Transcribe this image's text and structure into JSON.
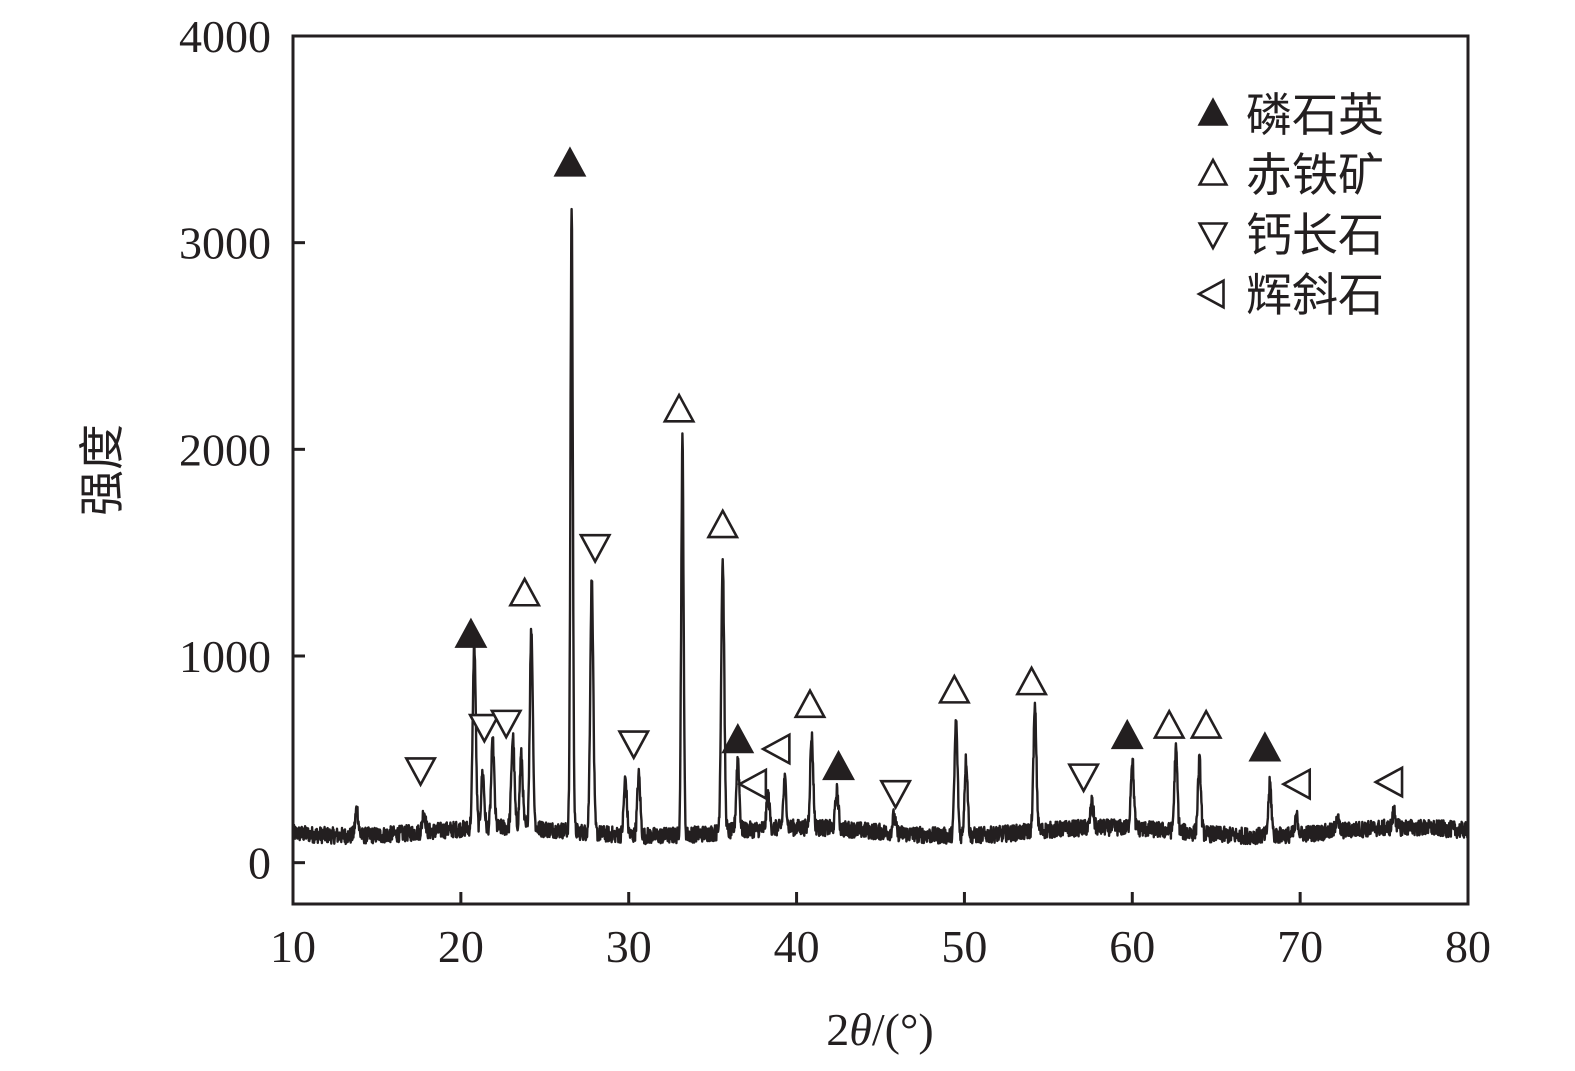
{
  "chart_data": {
    "type": "line",
    "title": "",
    "xlabel": "2θ/(°)",
    "xlabel_parts": {
      "prefix": "2",
      "symbol": "θ",
      "suffix": "/(°)"
    },
    "ylabel": "强度",
    "xlim": [
      10,
      80
    ],
    "ylim": [
      -200,
      4000
    ],
    "xticks": [
      10,
      20,
      30,
      40,
      50,
      60,
      70,
      80
    ],
    "yticks": [
      0,
      1000,
      2000,
      3000,
      4000
    ],
    "grid": false,
    "legend_position": "top-right",
    "line_color": "#231f20",
    "baseline": 150,
    "peaks": [
      {
        "x": 13.8,
        "y": 280
      },
      {
        "x": 17.8,
        "y": 250
      },
      {
        "x": 20.8,
        "y": 1040
      },
      {
        "x": 21.3,
        "y": 420
      },
      {
        "x": 21.9,
        "y": 560
      },
      {
        "x": 23.1,
        "y": 590
      },
      {
        "x": 23.6,
        "y": 500
      },
      {
        "x": 24.2,
        "y": 1110
      },
      {
        "x": 26.6,
        "y": 3170
      },
      {
        "x": 27.8,
        "y": 1370
      },
      {
        "x": 29.8,
        "y": 420
      },
      {
        "x": 30.6,
        "y": 440
      },
      {
        "x": 33.2,
        "y": 2060
      },
      {
        "x": 35.6,
        "y": 1460
      },
      {
        "x": 36.5,
        "y": 500
      },
      {
        "x": 38.3,
        "y": 310
      },
      {
        "x": 39.3,
        "y": 380
      },
      {
        "x": 40.9,
        "y": 590
      },
      {
        "x": 42.4,
        "y": 330
      },
      {
        "x": 45.8,
        "y": 230
      },
      {
        "x": 49.5,
        "y": 700
      },
      {
        "x": 50.1,
        "y": 520
      },
      {
        "x": 54.2,
        "y": 740
      },
      {
        "x": 57.6,
        "y": 270
      },
      {
        "x": 60.0,
        "y": 480
      },
      {
        "x": 62.6,
        "y": 540
      },
      {
        "x": 64.0,
        "y": 500
      },
      {
        "x": 68.2,
        "y": 400
      },
      {
        "x": 69.8,
        "y": 230
      },
      {
        "x": 72.2,
        "y": 220
      },
      {
        "x": 75.6,
        "y": 230
      }
    ],
    "series": [
      {
        "name": "磷石英",
        "symbol": "triangle-up-filled",
        "markers": [
          [
            20.6,
            1100
          ],
          [
            26.5,
            3380
          ],
          [
            36.5,
            590
          ],
          [
            42.5,
            460
          ],
          [
            59.7,
            610
          ],
          [
            67.9,
            550
          ]
        ]
      },
      {
        "name": "赤铁矿",
        "symbol": "triangle-up-open",
        "markers": [
          [
            23.8,
            1300
          ],
          [
            33.0,
            2190
          ],
          [
            35.6,
            1630
          ],
          [
            40.8,
            760
          ],
          [
            49.4,
            830
          ],
          [
            54.0,
            870
          ],
          [
            62.2,
            660
          ],
          [
            64.4,
            660
          ]
        ]
      },
      {
        "name": "钙长石",
        "symbol": "triangle-down-open",
        "markers": [
          [
            17.6,
            450
          ],
          [
            21.4,
            660
          ],
          [
            22.7,
            680
          ],
          [
            28.0,
            1530
          ],
          [
            30.3,
            580
          ],
          [
            45.9,
            340
          ],
          [
            57.1,
            420
          ]
        ]
      },
      {
        "name": "辉斜石",
        "symbol": "triangle-left-open",
        "markers": [
          [
            37.5,
            380
          ],
          [
            38.9,
            550
          ],
          [
            69.9,
            380
          ],
          [
            75.4,
            390
          ]
        ]
      }
    ]
  }
}
